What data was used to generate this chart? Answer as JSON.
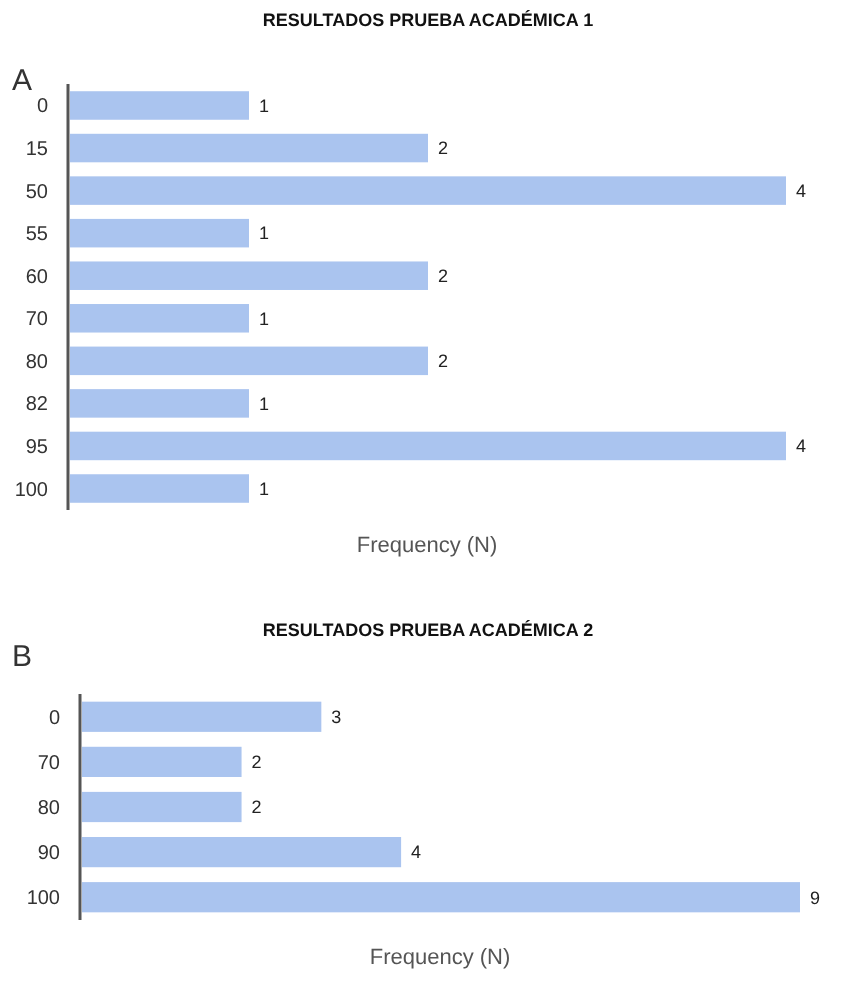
{
  "chart_data": [
    {
      "type": "bar",
      "orientation": "horizontal",
      "title": "RESULTADOS PRUEBA ACADÉMICA 1",
      "xlabel": "Frequency (N)",
      "annotations": [
        "A"
      ],
      "categories": [
        "0",
        "15",
        "50",
        "55",
        "60",
        "70",
        "80",
        "82",
        "95",
        "100"
      ],
      "values": [
        1,
        2,
        4,
        1,
        2,
        1,
        2,
        1,
        4,
        1
      ],
      "color": "#aac4ef",
      "data_labels": true
    },
    {
      "type": "bar",
      "orientation": "horizontal",
      "title": "RESULTADOS PRUEBA ACADÉMICA 2",
      "xlabel": "Frequency (N)",
      "annotations": [
        "B"
      ],
      "categories": [
        "0",
        "70",
        "80",
        "90",
        "100"
      ],
      "values": [
        3,
        2,
        2,
        4,
        9
      ],
      "color": "#aac4ef",
      "data_labels": true
    }
  ]
}
